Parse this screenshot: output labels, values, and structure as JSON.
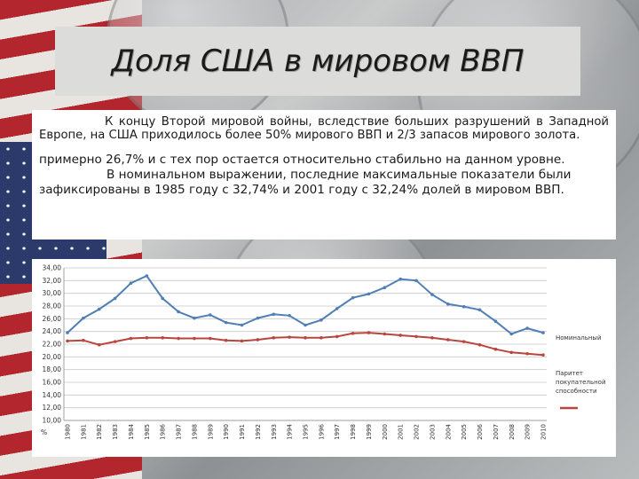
{
  "title": "Доля США в мировом ВВП",
  "paragraphs": {
    "p1": "К концу Второй мировой войны, вследствие больших разрушений в Западной Европе, на США приходилось более 50% мирового ВВП и 2/3 запасов мирового золота.",
    "p2": "примерно 26,7% и с тех пор остается относительно стабильно на данном уровне.",
    "p3": "В номинальном выражении, последние максимальные показатели были зафиксированы в 1985 году с 32,74% и 2001 году с 32,24% долей в мировом ВВП."
  },
  "colors": {
    "nominal": "#4f7fb5",
    "ppp": "#b8463e",
    "grid": "#c8c8c8"
  },
  "chart_data": {
    "type": "line",
    "y_unit_label": "%",
    "ylim": [
      10,
      34
    ],
    "y_ticks": [
      "10,00",
      "12,00",
      "14,00",
      "16,00",
      "18,00",
      "20,00",
      "22,00",
      "24,00",
      "26,00",
      "28,00",
      "30,00",
      "32,00",
      "34,00"
    ],
    "x": [
      "1980",
      "1981",
      "1982",
      "1983",
      "1984",
      "1985",
      "1986",
      "1987",
      "1988",
      "1989",
      "1990",
      "1991",
      "1992",
      "1993",
      "1994",
      "1995",
      "1996",
      "1997",
      "1998",
      "1999",
      "2000",
      "2001",
      "2002",
      "2003",
      "2004",
      "2005",
      "2006",
      "2007",
      "2008",
      "2009",
      "2010"
    ],
    "grid": true,
    "legend_position": "right",
    "series": [
      {
        "name": "Номинальный",
        "values": [
          23.8,
          26.1,
          27.5,
          29.2,
          31.6,
          32.74,
          29.2,
          27.1,
          26.1,
          26.6,
          25.4,
          25.0,
          26.1,
          26.7,
          26.5,
          25.0,
          25.8,
          27.6,
          29.3,
          29.9,
          30.9,
          32.24,
          32.0,
          29.8,
          28.3,
          27.9,
          27.4,
          25.6,
          23.6,
          24.5,
          23.8
        ]
      },
      {
        "name": "Паритет покупательной способности",
        "values": [
          22.5,
          22.6,
          21.9,
          22.4,
          22.9,
          23.0,
          23.0,
          22.9,
          22.9,
          22.9,
          22.6,
          22.5,
          22.7,
          23.0,
          23.1,
          23.0,
          23.0,
          23.2,
          23.7,
          23.8,
          23.6,
          23.4,
          23.2,
          23.0,
          22.7,
          22.4,
          21.9,
          21.2,
          20.7,
          20.5,
          20.3
        ]
      }
    ]
  }
}
